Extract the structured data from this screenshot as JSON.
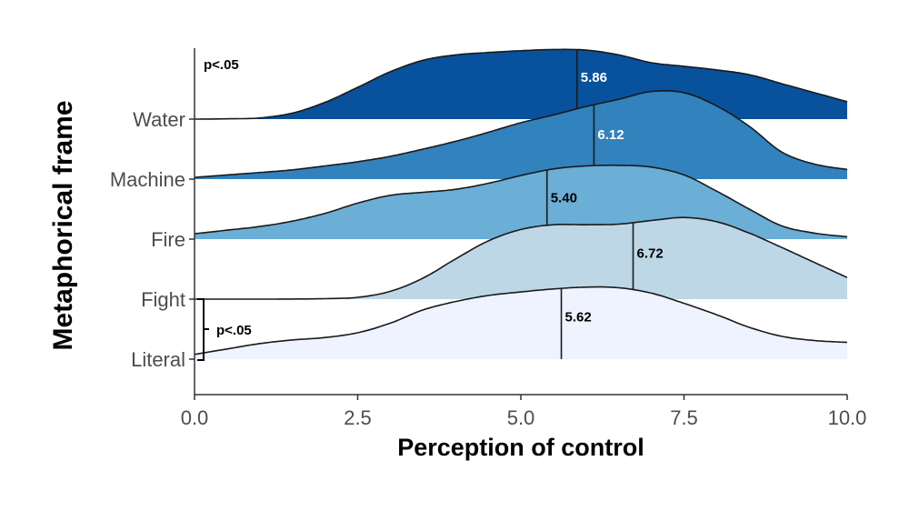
{
  "chart_data": {
    "type": "ridgeline",
    "title": "",
    "xlabel": "Perception of control",
    "ylabel": "Metaphorical frame",
    "xlim": [
      0,
      10
    ],
    "x_ticks": [
      0,
      2.5,
      5,
      7.5,
      10
    ],
    "x_tick_labels": [
      "0.0",
      "2.5",
      "5.0",
      "7.5",
      "10.0"
    ],
    "grid": false,
    "density_x": [
      0,
      0.5,
      1,
      1.5,
      2,
      2.5,
      3,
      3.5,
      4,
      4.5,
      5,
      5.5,
      6,
      6.5,
      7,
      7.5,
      8,
      8.5,
      9,
      9.5,
      10
    ],
    "density_unit": "relative density (ridge height in row-spacing units)",
    "series": [
      {
        "name": "Water",
        "color": "#08519c",
        "median": 5.86,
        "median_label": "5.86",
        "label_color": "#ffffff",
        "density": [
          0,
          0.005,
          0.02,
          0.1,
          0.28,
          0.53,
          0.79,
          0.98,
          1.07,
          1.11,
          1.14,
          1.16,
          1.15,
          1.07,
          0.94,
          0.88,
          0.82,
          0.74,
          0.59,
          0.44,
          0.29
        ]
      },
      {
        "name": "Machine",
        "color": "#3182bd",
        "median": 6.12,
        "median_label": "6.12",
        "label_color": "#ffffff",
        "density": [
          0.03,
          0.07,
          0.11,
          0.155,
          0.22,
          0.29,
          0.38,
          0.5,
          0.63,
          0.78,
          0.94,
          1.07,
          1.21,
          1.33,
          1.46,
          1.44,
          1.22,
          0.88,
          0.45,
          0.25,
          0.16
        ]
      },
      {
        "name": "Fire",
        "color": "#6baed6",
        "median": 5.4,
        "median_label": "5.40",
        "label_color": "#000000",
        "density": [
          0.09,
          0.15,
          0.21,
          0.3,
          0.43,
          0.6,
          0.73,
          0.78,
          0.83,
          0.93,
          1.06,
          1.17,
          1.22,
          1.23,
          1.2,
          1.07,
          0.8,
          0.5,
          0.22,
          0.1,
          0.04
        ]
      },
      {
        "name": "Fight",
        "color": "#bdd7e7",
        "median": 6.72,
        "median_label": "6.72",
        "label_color": "#000000",
        "density": [
          0,
          0,
          0,
          0.002,
          0.008,
          0.03,
          0.13,
          0.35,
          0.67,
          0.97,
          1.16,
          1.24,
          1.24,
          1.25,
          1.31,
          1.36,
          1.29,
          1.1,
          0.86,
          0.61,
          0.36
        ]
      },
      {
        "name": "Literal",
        "color": "#eff3ff",
        "median": 5.62,
        "median_label": "5.62",
        "label_color": "#000000",
        "density": [
          0.08,
          0.17,
          0.26,
          0.32,
          0.36,
          0.44,
          0.6,
          0.82,
          0.96,
          1.06,
          1.12,
          1.17,
          1.2,
          1.19,
          1.1,
          0.93,
          0.74,
          0.53,
          0.38,
          0.31,
          0.28
        ]
      }
    ],
    "annotations": [
      {
        "text": "p<.05",
        "refers_to": "Water (top-left)"
      },
      {
        "text": "p<.05",
        "refers_to": "Fight vs Literal (bracket)"
      }
    ]
  }
}
